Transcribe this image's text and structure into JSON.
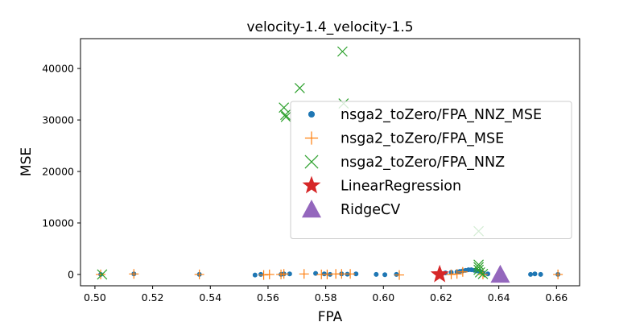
{
  "chart_data": {
    "type": "scatter",
    "title": "velocity-1.4_velocity-1.5",
    "xlabel": "FPA",
    "ylabel": "MSE",
    "xlim": [
      0.495,
      0.668
    ],
    "ylim": [
      -2200,
      45800
    ],
    "xticks": [
      "0.50",
      "0.52",
      "0.54",
      "0.56",
      "0.58",
      "0.60",
      "0.62",
      "0.64",
      "0.66"
    ],
    "yticks": [
      "0",
      "10000",
      "20000",
      "30000",
      "40000"
    ],
    "grid": false,
    "legend_position": "upper-right",
    "series": [
      {
        "name": "nsga2_toZero/FPA_NNZ_MSE",
        "marker": "dot",
        "color": "#1f77b4",
        "x": [
          0.502,
          0.5135,
          0.5362,
          0.5555,
          0.5575,
          0.5645,
          0.5655,
          0.5675,
          0.5765,
          0.5795,
          0.5815,
          0.5855,
          0.5875,
          0.5905,
          0.5975,
          0.6005,
          0.6045,
          0.6215,
          0.6235,
          0.6255,
          0.6265,
          0.6275,
          0.6285,
          0.6295,
          0.6305,
          0.6315,
          0.6325,
          0.6335,
          0.6345,
          0.6362,
          0.651,
          0.6525,
          0.6545,
          0.6605
        ],
        "y": [
          0,
          100,
          0,
          -100,
          0,
          0,
          100,
          100,
          200,
          100,
          0,
          100,
          50,
          100,
          0,
          -50,
          0,
          300,
          400,
          500,
          600,
          700,
          800,
          900,
          900,
          800,
          700,
          600,
          300,
          100,
          0,
          100,
          0,
          0
        ]
      },
      {
        "name": "nsga2_toZero/FPA_MSE",
        "marker": "plus",
        "color": "#ff7f0e",
        "x": [
          0.502,
          0.5135,
          0.5362,
          0.5585,
          0.5605,
          0.5645,
          0.5655,
          0.5725,
          0.5785,
          0.5805,
          0.5835,
          0.5855,
          0.5885,
          0.6055,
          0.6235,
          0.6255,
          0.6275,
          0.6345,
          0.6605
        ],
        "y": [
          0,
          100,
          0,
          -100,
          0,
          0,
          100,
          100,
          0,
          0,
          100,
          100,
          100,
          -100,
          0,
          100,
          500,
          0,
          0
        ]
      },
      {
        "name": "nsga2_toZero/FPA_NNZ",
        "marker": "x",
        "color": "#2ca02c",
        "x": [
          0.5025,
          0.5655,
          0.566,
          0.5662,
          0.571,
          0.5858,
          0.5862,
          0.633,
          0.633,
          0.633,
          0.633,
          0.6335,
          0.6345
        ],
        "y": [
          0,
          32400,
          31000,
          30600,
          36200,
          43300,
          33200,
          8400,
          1900,
          1400,
          900,
          400,
          100
        ]
      },
      {
        "name": "LinearRegression",
        "marker": "star",
        "color": "#d62728",
        "x": [
          0.6195
        ],
        "y": [
          0
        ]
      },
      {
        "name": "RidgeCV",
        "marker": "triangle",
        "color": "#9467bd",
        "x": [
          0.6405
        ],
        "y": [
          0
        ]
      }
    ]
  }
}
